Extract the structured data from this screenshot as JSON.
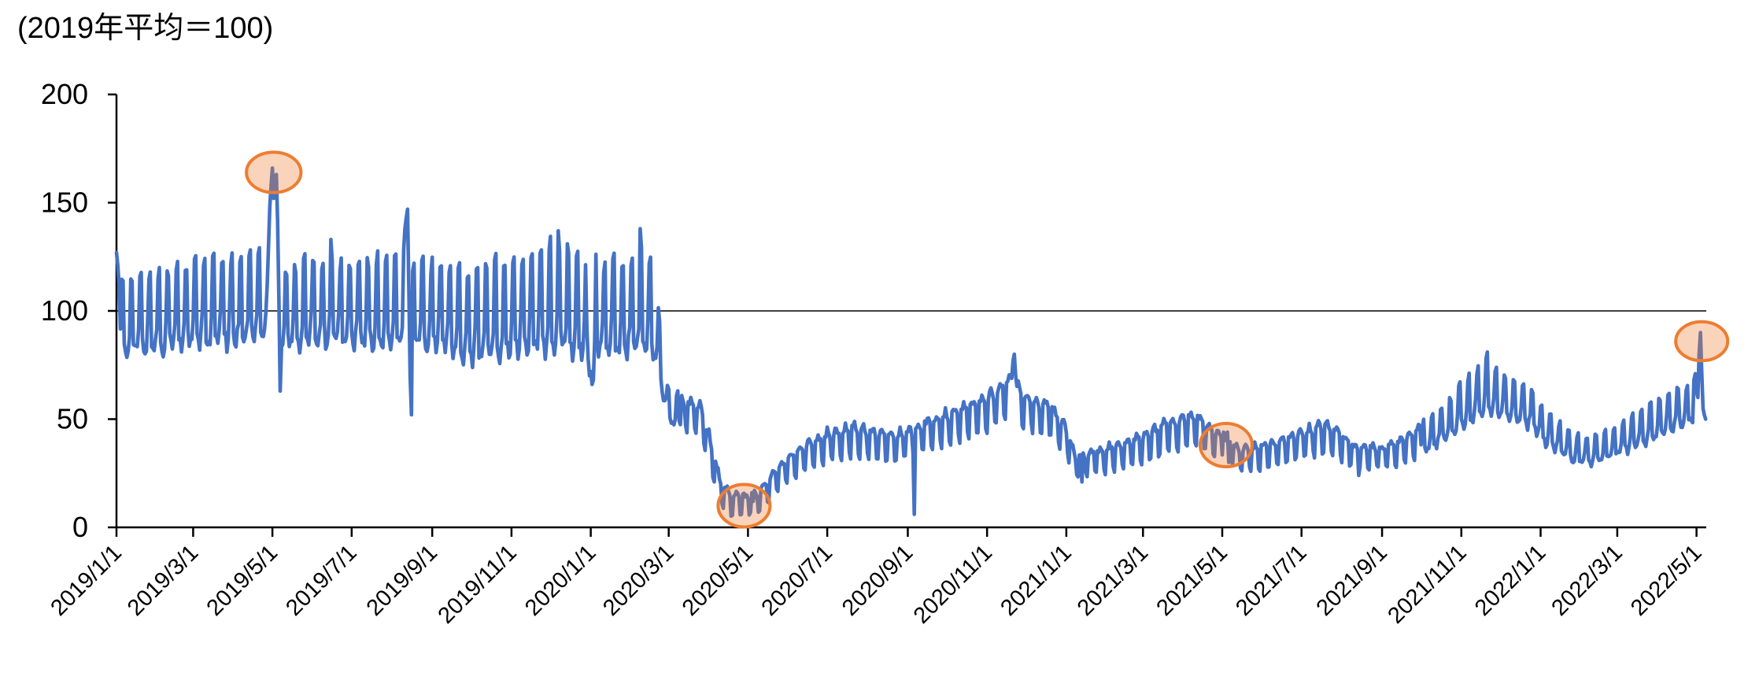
{
  "chart_data": {
    "type": "line",
    "title": "(2019年平均＝100)",
    "background": "#FFFFFF",
    "grid": "off",
    "legend": "none",
    "y_axis": {
      "min": 0,
      "max": 200,
      "ticks": [
        0,
        50,
        100,
        150,
        200
      ],
      "reference_line": 100
    },
    "x_axis": {
      "start": "2019-01-01",
      "end": "2022-05-13",
      "tick_labels": [
        "2019/1/1",
        "2019/3/1",
        "2019/5/1",
        "2019/7/1",
        "2019/9/1",
        "2019/11/1",
        "2020/1/1",
        "2020/3/1",
        "2020/5/1",
        "2020/7/1",
        "2020/9/1",
        "2020/11/1",
        "2021/1/1",
        "2021/3/1",
        "2021/5/1",
        "2021/7/1",
        "2021/9/1",
        "2021/11/1",
        "2022/1/1",
        "2022/3/1",
        "2022/5/1"
      ]
    },
    "series": [
      {
        "name": "daily-footfall-index",
        "color": "#4472C4",
        "stroke_width": 4.6,
        "start": "2019-01-01",
        "end": "2022-05-08",
        "envelope_keyframes": [
          [
            "2019-01-01",
            80,
            113
          ],
          [
            "2019-02-01",
            82,
            118
          ],
          [
            "2019-03-01",
            84,
            123
          ],
          [
            "2019-04-01",
            85,
            126
          ],
          [
            "2019-04-26",
            88,
            128
          ],
          [
            "2019-05-10",
            83,
            118
          ],
          [
            "2019-06-01",
            85,
            126
          ],
          [
            "2019-07-01",
            84,
            122
          ],
          [
            "2019-08-01",
            83,
            125
          ],
          [
            "2019-09-01",
            85,
            122
          ],
          [
            "2019-10-01",
            76,
            120
          ],
          [
            "2019-11-01",
            80,
            124
          ],
          [
            "2019-12-01",
            82,
            130
          ],
          [
            "2020-01-10",
            80,
            122
          ],
          [
            "2020-02-14",
            82,
            126
          ],
          [
            "2020-02-21",
            75,
            108
          ],
          [
            "2020-02-25",
            62,
            80
          ],
          [
            "2020-03-01",
            48,
            63
          ],
          [
            "2020-03-25",
            42,
            58
          ],
          [
            "2020-04-03",
            25,
            40
          ],
          [
            "2020-04-10",
            10,
            22
          ],
          [
            "2020-04-18",
            5,
            16
          ],
          [
            "2020-05-08",
            6,
            17
          ],
          [
            "2020-05-18",
            13,
            24
          ],
          [
            "2020-06-01",
            22,
            34
          ],
          [
            "2020-06-15",
            26,
            40
          ],
          [
            "2020-07-01",
            30,
            45
          ],
          [
            "2020-07-20",
            33,
            48
          ],
          [
            "2020-08-01",
            32,
            47
          ],
          [
            "2020-08-20",
            30,
            44
          ],
          [
            "2020-09-01",
            33,
            46
          ],
          [
            "2020-09-20",
            36,
            52
          ],
          [
            "2020-10-01",
            38,
            54
          ],
          [
            "2020-10-20",
            42,
            58
          ],
          [
            "2020-11-01",
            45,
            62
          ],
          [
            "2020-11-20",
            50,
            72
          ],
          [
            "2020-12-01",
            46,
            62
          ],
          [
            "2020-12-20",
            42,
            58
          ],
          [
            "2020-12-31",
            35,
            48
          ],
          [
            "2021-01-08",
            24,
            34
          ],
          [
            "2021-02-01",
            25,
            38
          ],
          [
            "2021-03-01",
            30,
            44
          ],
          [
            "2021-03-20",
            34,
            50
          ],
          [
            "2021-04-10",
            38,
            54
          ],
          [
            "2021-04-25",
            33,
            46
          ],
          [
            "2021-05-05",
            31,
            43
          ],
          [
            "2021-05-15",
            26,
            37
          ],
          [
            "2021-06-01",
            27,
            39
          ],
          [
            "2021-06-20",
            30,
            43
          ],
          [
            "2021-07-10",
            33,
            48
          ],
          [
            "2021-07-25",
            34,
            49
          ],
          [
            "2021-08-10",
            27,
            39
          ],
          [
            "2021-09-01",
            27,
            38
          ],
          [
            "2021-09-20",
            30,
            43
          ],
          [
            "2021-10-01",
            34,
            48
          ],
          [
            "2021-10-20",
            40,
            57
          ],
          [
            "2021-11-01",
            46,
            66
          ],
          [
            "2021-11-20",
            52,
            76
          ],
          [
            "2021-12-05",
            50,
            70
          ],
          [
            "2021-12-25",
            46,
            64
          ],
          [
            "2022-01-05",
            38,
            54
          ],
          [
            "2022-01-25",
            30,
            43
          ],
          [
            "2022-02-10",
            29,
            42
          ],
          [
            "2022-03-01",
            33,
            47
          ],
          [
            "2022-03-20",
            38,
            55
          ],
          [
            "2022-04-05",
            43,
            60
          ],
          [
            "2022-04-22",
            48,
            66
          ],
          [
            "2022-05-08",
            48,
            60
          ]
        ],
        "weekday_weight_periods": [
          {
            "from": "2019-01-01",
            "to": "2020-03-10",
            "weights_sun_to_sat": [
              1.0,
              0.12,
              0.04,
              0.0,
              0.08,
              0.3,
              0.95
            ]
          },
          {
            "from": "2020-03-11",
            "to": "2021-09-30",
            "weights_sun_to_sat": [
              0.0,
              0.85,
              0.9,
              1.0,
              0.9,
              0.8,
              0.1
            ]
          },
          {
            "from": "2021-10-01",
            "to": "2022-05-08",
            "weights_sun_to_sat": [
              1.0,
              0.15,
              0.05,
              0.0,
              0.1,
              0.35,
              0.95
            ]
          }
        ],
        "event_points": [
          [
            "2019-01-01",
            127
          ],
          [
            "2019-01-02",
            121
          ],
          [
            "2019-01-03",
            112
          ],
          [
            "2019-04-27",
            112
          ],
          [
            "2019-04-28",
            130
          ],
          [
            "2019-04-29",
            148
          ],
          [
            "2019-04-30",
            158
          ],
          [
            "2019-05-01",
            166
          ],
          [
            "2019-05-02",
            152
          ],
          [
            "2019-05-03",
            160
          ],
          [
            "2019-05-04",
            163
          ],
          [
            "2019-05-05",
            142
          ],
          [
            "2019-05-06",
            105
          ],
          [
            "2019-05-07",
            63
          ],
          [
            "2019-06-15",
            133
          ],
          [
            "2019-08-10",
            128
          ],
          [
            "2019-08-11",
            138
          ],
          [
            "2019-08-12",
            143
          ],
          [
            "2019-08-13",
            147
          ],
          [
            "2019-08-14",
            110
          ],
          [
            "2019-08-15",
            70
          ],
          [
            "2019-08-16",
            52
          ],
          [
            "2019-12-07",
            137
          ],
          [
            "2019-12-14",
            131
          ],
          [
            "2019-12-29",
            92
          ],
          [
            "2019-12-30",
            78
          ],
          [
            "2019-12-31",
            70
          ],
          [
            "2020-01-01",
            72
          ],
          [
            "2020-01-02",
            66
          ],
          [
            "2020-01-03",
            68
          ],
          [
            "2020-01-04",
            86
          ],
          [
            "2020-02-08",
            138
          ],
          [
            "2020-04-26",
            6
          ],
          [
            "2020-04-29",
            14
          ],
          [
            "2020-05-03",
            7
          ],
          [
            "2020-05-05",
            12
          ],
          [
            "2020-09-06",
            6
          ],
          [
            "2020-11-21",
            77
          ],
          [
            "2020-11-22",
            80
          ],
          [
            "2020-11-23",
            70
          ],
          [
            "2021-01-13",
            21
          ],
          [
            "2021-04-29",
            43
          ],
          [
            "2021-05-02",
            44
          ],
          [
            "2021-05-04",
            40
          ],
          [
            "2021-05-06",
            30
          ],
          [
            "2021-08-14",
            24
          ],
          [
            "2021-11-20",
            78
          ],
          [
            "2021-11-21",
            81
          ],
          [
            "2022-04-29",
            68
          ],
          [
            "2022-04-30",
            71
          ],
          [
            "2022-05-01",
            63
          ],
          [
            "2022-05-02",
            60
          ],
          [
            "2022-05-03",
            80
          ],
          [
            "2022-05-04",
            90
          ],
          [
            "2022-05-05",
            72
          ],
          [
            "2022-05-06",
            55
          ],
          [
            "2022-05-07",
            52
          ],
          [
            "2022-05-08",
            50
          ]
        ]
      }
    ],
    "annotations": [
      {
        "name": "golden-week-2019",
        "shape": "ellipse",
        "date": "2019-05-02",
        "value": 164,
        "rx_days": 21,
        "ry_value": 9.3,
        "stroke": "#ED7D31",
        "fill": "#ED7D31",
        "fill_opacity": 0.33
      },
      {
        "name": "golden-week-2020",
        "shape": "ellipse",
        "date": "2020-04-28",
        "value": 10,
        "rx_days": 20,
        "ry_value": 9.8,
        "stroke": "#ED7D31",
        "fill": "#ED7D31",
        "fill_opacity": 0.33
      },
      {
        "name": "golden-week-2021",
        "shape": "ellipse",
        "date": "2021-05-04",
        "value": 38,
        "rx_days": 20,
        "ry_value": 10.0,
        "stroke": "#ED7D31",
        "fill": "#ED7D31",
        "fill_opacity": 0.33
      },
      {
        "name": "golden-week-2022",
        "shape": "ellipse",
        "date": "2022-05-05",
        "value": 86,
        "rx_days": 20,
        "ry_value": 9.0,
        "stroke": "#ED7D31",
        "fill": "#ED7D31",
        "fill_opacity": 0.33
      }
    ]
  }
}
